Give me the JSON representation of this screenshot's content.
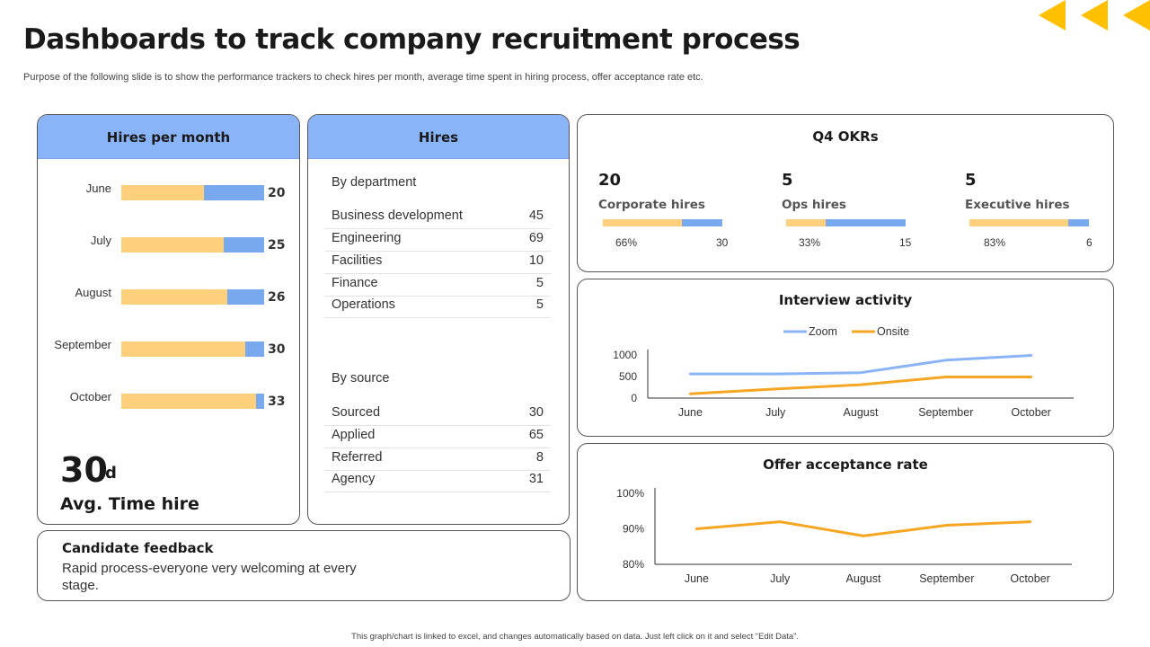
{
  "header": {
    "title": "Dashboards to track company recruitment process",
    "subtitle": "Purpose of the following slide is to show the performance trackers to check hires per month, average time spent in hiring process, offer acceptance rate etc."
  },
  "footer": {
    "note": "This graph/chart is linked to excel, and changes automatically based on data. Just left click on it and select “Edit Data”."
  },
  "colors": {
    "accent": "#FFC000",
    "panel_header": "#8AB4F8",
    "orange": "#F5A623",
    "blue": "#78A9EE",
    "light_orange": "#FFD07B"
  },
  "hires_per_month": {
    "title": "Hires per month",
    "rows": [
      {
        "month": "June",
        "value": "20",
        "fill": 0.58
      },
      {
        "month": "July",
        "value": "25",
        "fill": 0.72
      },
      {
        "month": "August",
        "value": "26",
        "fill": 0.745
      },
      {
        "month": "September",
        "value": "30",
        "fill": 0.865
      },
      {
        "month": "October",
        "value": "33",
        "fill": 0.945
      }
    ],
    "avg_value": "30",
    "avg_unit": "d",
    "avg_label": "Avg. Time hire"
  },
  "hires": {
    "title": "Hires",
    "by_department_label": "By department",
    "by_department": [
      {
        "name": "Business development",
        "value": "45"
      },
      {
        "name": "Engineering",
        "value": "69"
      },
      {
        "name": "Facilities",
        "value": "10"
      },
      {
        "name": "Finance",
        "value": "5"
      },
      {
        "name": "Operations",
        "value": "5"
      }
    ],
    "by_source_label": "By source",
    "by_source": [
      {
        "name": "Sourced",
        "value": "30"
      },
      {
        "name": "Applied",
        "value": "65"
      },
      {
        "name": "Referred",
        "value": "8"
      },
      {
        "name": "Agency",
        "value": "31"
      }
    ]
  },
  "okrs": {
    "title": "Q4 OKRs",
    "items": [
      {
        "num": "20",
        "name": "Corporate hires",
        "pct": "66%",
        "pct_value": 0.66,
        "count": "30"
      },
      {
        "num": "5",
        "name": "Ops hires",
        "pct": "33%",
        "pct_value": 0.33,
        "count": "15"
      },
      {
        "num": "5",
        "name": "Executive hires",
        "pct": "83%",
        "pct_value": 0.83,
        "count": "6"
      }
    ]
  },
  "feedback": {
    "title": "Candidate feedback",
    "text": "Rapid process-everyone very welcoming at every stage."
  },
  "chart_data": [
    {
      "type": "bar",
      "title": "Hires per month",
      "categories": [
        "June",
        "July",
        "August",
        "September",
        "October"
      ],
      "values": [
        20,
        25,
        26,
        30,
        33
      ]
    },
    {
      "type": "line",
      "title": "Interview activity",
      "categories": [
        "June",
        "July",
        "August",
        "September",
        "October"
      ],
      "yticks": [
        "1000",
        "500",
        "0"
      ],
      "ylim": [
        0,
        1000
      ],
      "legend": "top",
      "series": [
        {
          "name": "Zoom",
          "color": "#8AB4F8",
          "values": [
            560,
            560,
            590,
            880,
            990
          ]
        },
        {
          "name": "Onsite",
          "color": "#F5A623",
          "values": [
            100,
            210,
            310,
            490,
            490
          ]
        }
      ]
    },
    {
      "type": "line",
      "title": "Offer acceptance rate",
      "categories": [
        "June",
        "July",
        "August",
        "September",
        "October"
      ],
      "yticks": [
        "100%",
        "90%",
        "80%"
      ],
      "ylim": [
        80,
        100
      ],
      "series": [
        {
          "name": "",
          "color": "#F5A623",
          "values": [
            90,
            92,
            88,
            91,
            92
          ]
        }
      ]
    }
  ]
}
